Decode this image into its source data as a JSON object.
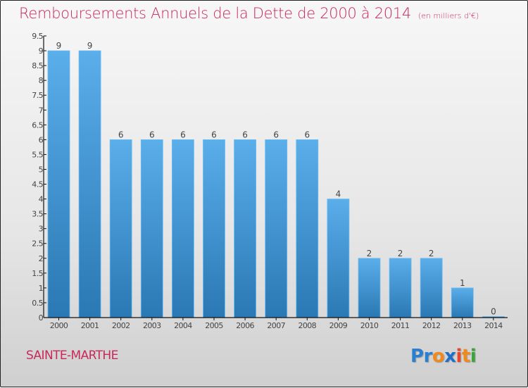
{
  "chart_data": {
    "type": "bar",
    "title": "Remboursements Annuels de la Dette de 2000 à 2014",
    "subtitle": "(en milliers d'€)",
    "xlabel": "",
    "ylabel": "",
    "categories": [
      "2000",
      "2001",
      "2002",
      "2003",
      "2004",
      "2005",
      "2006",
      "2007",
      "2008",
      "2009",
      "2010",
      "2011",
      "2012",
      "2013",
      "2014"
    ],
    "values": [
      9,
      9,
      6,
      6,
      6,
      6,
      6,
      6,
      6,
      4,
      2,
      2,
      2,
      1,
      0
    ],
    "data_labels": [
      "9",
      "9",
      "6",
      "6",
      "6",
      "6",
      "6",
      "6",
      "6",
      "4",
      "2",
      "2",
      "2",
      "1",
      "0"
    ],
    "ylim": [
      0,
      9.5
    ],
    "yticks": [
      0,
      0.5,
      1,
      1.5,
      2,
      2.5,
      3,
      3.5,
      4,
      4.5,
      5,
      5.5,
      6,
      6.5,
      7,
      7.5,
      8,
      8.5,
      9,
      9.5
    ],
    "ytick_labels": [
      "0",
      "0.5",
      "1",
      "1.5",
      "2",
      "2.5",
      "3",
      "3.5",
      "4",
      "4.5",
      "5",
      "5.5",
      "6",
      "6.5",
      "7",
      "7.5",
      "8",
      "8.5",
      "9",
      "9.5"
    ],
    "grid": false,
    "legend": "none",
    "bar_color_top": "#5aaeea",
    "bar_color_bottom": "#2a78b4"
  },
  "header": {
    "title": "Remboursements Annuels de la Dette de 2000 à 2014",
    "unit": "(en milliers d'€)"
  },
  "footer": {
    "city": "SAINTE-MARTHE",
    "logo": {
      "letters": [
        {
          "char": "P",
          "color": "#2a7fd0"
        },
        {
          "char": "r",
          "color": "#2a7fd0"
        },
        {
          "char": "o",
          "color": "#f08a1c"
        },
        {
          "char": "x",
          "color": "#1f6fc8"
        },
        {
          "char": "i",
          "color": "#e8462a"
        },
        {
          "char": "t",
          "color": "#f08a1c"
        },
        {
          "char": "i",
          "color": "#3aa53a"
        }
      ]
    }
  }
}
